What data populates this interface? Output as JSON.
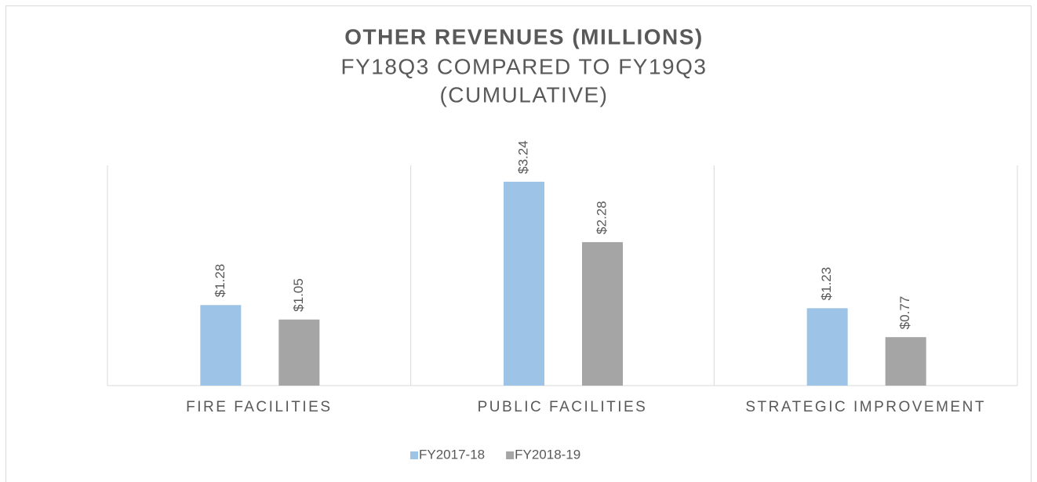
{
  "chart_data": {
    "type": "bar",
    "title": "OTHER REVENUES (MILLIONS)",
    "subtitle": [
      "FY18Q3 COMPARED TO FY19Q3",
      "(CUMULATIVE)"
    ],
    "categories": [
      "FIRE FACILITIES",
      "PUBLIC FACILITIES",
      "STRATEGIC IMPROVEMENT"
    ],
    "series": [
      {
        "name": "FY2017-18",
        "color": "#9dc3e6",
        "values": [
          1.28,
          3.24,
          1.23
        ],
        "value_labels": [
          "$1.28",
          "$3.24",
          "$1.23"
        ]
      },
      {
        "name": "FY2018-19",
        "color": "#a5a5a5",
        "values": [
          1.05,
          2.28,
          0.77
        ],
        "value_labels": [
          "$1.05",
          "$2.28",
          "$0.77"
        ]
      }
    ],
    "ylim": [
      0,
      3.5
    ],
    "legend": "bottom"
  }
}
